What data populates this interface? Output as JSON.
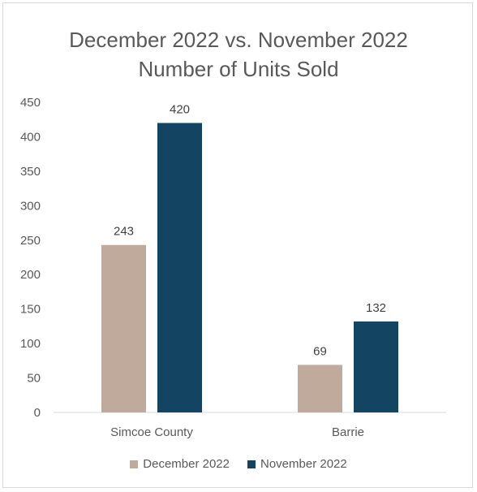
{
  "colors": {
    "december": "#c0aa9c",
    "november": "#134562",
    "text": "#595959",
    "axis": "#d9d9d9"
  },
  "chart_data": {
    "type": "bar",
    "title_line1": "December 2022 vs. November 2022",
    "title_line2": "Number of Units Sold",
    "categories": [
      "Simcoe County",
      "Barrie"
    ],
    "series": [
      {
        "name": "December 2022",
        "values": [
          243,
          69
        ]
      },
      {
        "name": "November 2022",
        "values": [
          420,
          132
        ]
      }
    ],
    "yticks": [
      0,
      50,
      100,
      150,
      200,
      250,
      300,
      350,
      400,
      450
    ],
    "ylim": [
      0,
      450
    ],
    "legend_position": "bottom",
    "grid": false
  }
}
